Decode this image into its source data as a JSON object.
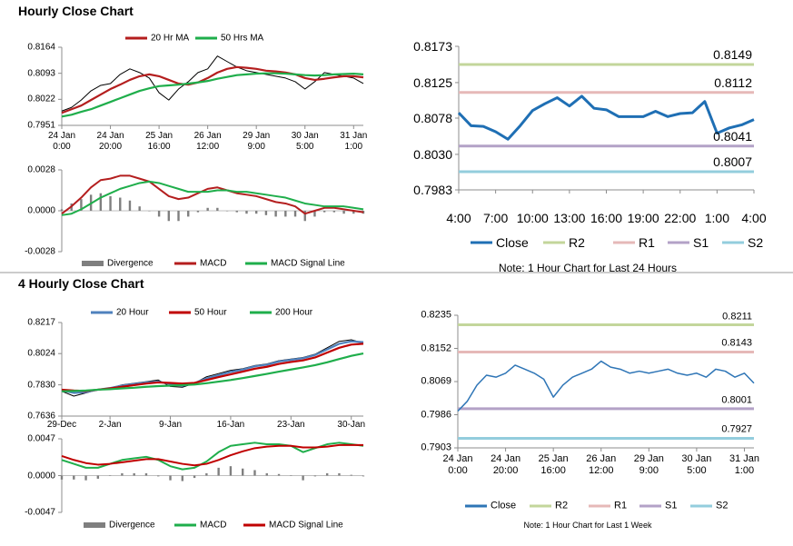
{
  "headings": [
    "Hourly Close Chart",
    "4 Hourly Close Chart"
  ],
  "chart_data": [
    {
      "type": "line",
      "categories": [
        "24 Jan\n0:00",
        null,
        null,
        null,
        null,
        "24 Jan\n20:00",
        null,
        null,
        null,
        null,
        "25 Jan\n16:00",
        null,
        null,
        null,
        null,
        "26 Jan\n12:00",
        null,
        null,
        null,
        null,
        "29 Jan\n9:00",
        null,
        null,
        null,
        null,
        "30 Jan\n5:00",
        null,
        null,
        null,
        null,
        "31 Jan\n1:00",
        null
      ],
      "series": [
        {
          "color": "#000000",
          "values": [
            0.799,
            0.8,
            0.802,
            0.8045,
            0.806,
            0.8065,
            0.809,
            0.8105,
            0.8095,
            0.808,
            0.804,
            0.802,
            0.805,
            0.807,
            0.8095,
            0.8105,
            0.814,
            0.8125,
            0.811,
            0.81,
            0.8095,
            0.809,
            0.8085,
            0.808,
            0.807,
            0.805,
            0.807,
            0.8095,
            0.809,
            0.8085,
            0.808,
            0.8065
          ]
        },
        {
          "name": "20 Hr MA",
          "color": "#b41e1e",
          "values": [
            0.7985,
            0.7995,
            0.8005,
            0.802,
            0.8035,
            0.805,
            0.8062,
            0.8075,
            0.8085,
            0.809,
            0.8085,
            0.8075,
            0.8065,
            0.8062,
            0.8068,
            0.808,
            0.8095,
            0.8105,
            0.811,
            0.8108,
            0.8105,
            0.81,
            0.8098,
            0.8095,
            0.809,
            0.808,
            0.8075,
            0.8078,
            0.8082,
            0.8085,
            0.8085,
            0.8082
          ]
        },
        {
          "name": "50 Hrs MA",
          "color": "#1fae4b",
          "values": [
            0.7975,
            0.798,
            0.7988,
            0.7995,
            0.8005,
            0.8015,
            0.8025,
            0.8035,
            0.8045,
            0.8052,
            0.8058,
            0.806,
            0.8062,
            0.8065,
            0.8068,
            0.8072,
            0.8078,
            0.8083,
            0.8088,
            0.809,
            0.8092,
            0.8093,
            0.8093,
            0.8092,
            0.809,
            0.8088,
            0.8087,
            0.8088,
            0.809,
            0.8091,
            0.8092,
            0.809
          ]
        }
      ],
      "ylim": [
        0.7951,
        0.8164
      ],
      "yticks": [
        0.7951,
        0.8022,
        0.8093,
        0.8164
      ]
    },
    {
      "type": "combo",
      "series": [
        {
          "name": "Divergence",
          "type": "bar",
          "color": "#7f7f7f",
          "values": [
            0.0001,
            0.0005,
            0.0008,
            0.0011,
            0.0012,
            0.001,
            0.0009,
            0.0007,
            0.0003,
            0,
            -0.0004,
            -0.0007,
            -0.0007,
            -0.0004,
            -0.0001,
            0.0002,
            0.0002,
            0,
            -0.0001,
            -0.0002,
            -0.0002,
            -0.0003,
            -0.0004,
            -0.0004,
            -0.0004,
            -0.0007,
            -0.0004,
            -0.0001,
            -0.0001,
            -0.0002,
            -0.0002,
            -0.0002
          ]
        },
        {
          "name": "MACD",
          "type": "line",
          "color": "#b41e1e",
          "values": [
            -0.0002,
            0.0003,
            0.0009,
            0.0016,
            0.0021,
            0.0022,
            0.0024,
            0.0024,
            0.0022,
            0.002,
            0.0015,
            0.001,
            0.0008,
            0.0009,
            0.0012,
            0.0015,
            0.0016,
            0.0014,
            0.0012,
            0.0011,
            0.001,
            0.0008,
            0.0006,
            0.0005,
            0.0003,
            -0.0002,
            0,
            0.0002,
            0.0002,
            0.0001,
            0,
            -0.0001
          ]
        },
        {
          "name": "MACD Signal Line",
          "type": "line",
          "color": "#1fae4b",
          "values": [
            -0.0003,
            -0.0002,
            0.0001,
            0.0005,
            0.0009,
            0.0012,
            0.0015,
            0.0017,
            0.0019,
            0.002,
            0.0019,
            0.0017,
            0.0015,
            0.0013,
            0.0013,
            0.0013,
            0.0014,
            0.0014,
            0.0013,
            0.0013,
            0.0012,
            0.0011,
            0.001,
            0.0009,
            0.0007,
            0.0005,
            0.0004,
            0.0003,
            0.0003,
            0.0003,
            0.0002,
            0.0001
          ]
        }
      ],
      "ylim": [
        -0.0028,
        0.0028
      ],
      "yticks": [
        -0.0028,
        {
          "value": 0,
          "label": "0.0000"
        },
        0.0028
      ]
    },
    {
      "type": "line",
      "categories": [
        "4:00",
        null,
        null,
        "7:00",
        null,
        null,
        "10:00",
        null,
        null,
        "13:00",
        null,
        null,
        "16:00",
        null,
        null,
        "19:00",
        null,
        null,
        "22:00",
        null,
        null,
        "1:00",
        null,
        null,
        "4:00"
      ],
      "series": [
        {
          "name": "Close",
          "color": "#1f6fb4",
          "values": [
            0.8085,
            0.8068,
            0.8067,
            0.806,
            0.805,
            0.8068,
            0.8088,
            0.8097,
            0.8105,
            0.8094,
            0.8107,
            0.8091,
            0.8089,
            0.808,
            0.808,
            0.808,
            0.8087,
            0.808,
            0.8084,
            0.8085,
            0.81,
            0.8058,
            0.8065,
            0.8069,
            0.8076
          ]
        }
      ],
      "levels": [
        {
          "name": "R2",
          "value": 0.8149,
          "color": "#c3d69b"
        },
        {
          "name": "R1",
          "value": 0.8112,
          "color": "#e6b9b8"
        },
        {
          "name": "S1",
          "value": 0.8041,
          "color": "#b3a2c7"
        },
        {
          "name": "S2",
          "value": 0.8007,
          "color": "#93cddd"
        }
      ],
      "ylim": [
        0.7983,
        0.8173
      ],
      "yticks": [
        0.7983,
        {
          "value": 0.803,
          "label": "0.8030"
        },
        0.8078,
        0.8125,
        0.8173
      ],
      "note": "Note: 1 Hour Chart for Last 24 Hours"
    },
    {
      "type": "line",
      "categories": [
        "29-Dec",
        null,
        null,
        null,
        "2-Jan",
        null,
        null,
        null,
        null,
        "9-Jan",
        null,
        null,
        null,
        null,
        "16-Jan",
        null,
        null,
        null,
        null,
        "23-Jan",
        null,
        null,
        null,
        null,
        "30-Jan",
        null
      ],
      "series": [
        {
          "color": "#000000",
          "values": [
            0.779,
            0.776,
            0.778,
            0.78,
            0.781,
            0.783,
            0.784,
            0.785,
            0.786,
            0.782,
            0.7815,
            0.784,
            0.788,
            0.79,
            0.792,
            0.793,
            0.795,
            0.796,
            0.798,
            0.799,
            0.8,
            0.802,
            0.806,
            0.81,
            0.811,
            0.809
          ]
        },
        {
          "name": "20 Hour",
          "color": "#4f81bd",
          "values": [
            0.7795,
            0.778,
            0.7785,
            0.78,
            0.781,
            0.7825,
            0.7835,
            0.7845,
            0.785,
            0.7835,
            0.7825,
            0.784,
            0.787,
            0.789,
            0.791,
            0.7925,
            0.7945,
            0.7955,
            0.7975,
            0.7985,
            0.7995,
            0.8015,
            0.805,
            0.8085,
            0.81,
            0.8095
          ]
        },
        {
          "name": "50 Hour",
          "color": "#c00000",
          "values": [
            0.78,
            0.7795,
            0.7792,
            0.78,
            0.7808,
            0.7818,
            0.7828,
            0.7838,
            0.7845,
            0.7842,
            0.7838,
            0.7842,
            0.786,
            0.7878,
            0.7895,
            0.7912,
            0.793,
            0.7942,
            0.796,
            0.7972,
            0.7982,
            0.8,
            0.803,
            0.806,
            0.808,
            0.8085
          ]
        },
        {
          "name": "200 Hour",
          "color": "#1fae4b",
          "values": [
            0.779,
            0.7792,
            0.7795,
            0.78,
            0.7803,
            0.7808,
            0.7812,
            0.7818,
            0.7822,
            0.7825,
            0.7828,
            0.7832,
            0.784,
            0.785,
            0.786,
            0.7872,
            0.7885,
            0.7898,
            0.7912,
            0.7925,
            0.7938,
            0.7952,
            0.797,
            0.799,
            0.801,
            0.8025
          ]
        }
      ],
      "ylim": [
        0.7636,
        0.8217
      ],
      "yticks": [
        0.7636,
        {
          "value": 0.783,
          "label": "0.7830"
        },
        0.8024,
        0.8217
      ]
    },
    {
      "type": "combo",
      "series": [
        {
          "name": "Divergence",
          "type": "bar",
          "color": "#7f7f7f",
          "values": [
            -0.0005,
            -0.0005,
            -0.0006,
            -0.0004,
            0,
            0.0003,
            0.0003,
            0.0003,
            -0.0001,
            -0.0006,
            -0.0007,
            -0.0003,
            0.0003,
            0.001,
            0.0012,
            0.0009,
            0.0007,
            0.0003,
            0.0002,
            0,
            -0.0006,
            -0.0001,
            0.0003,
            0.0003,
            0.0001,
            -0.0001
          ]
        },
        {
          "name": "MACD",
          "type": "line",
          "color": "#1fae4b",
          "values": [
            0.002,
            0.0015,
            0.001,
            0.001,
            0.0015,
            0.002,
            0.0022,
            0.0024,
            0.002,
            0.0012,
            0.0008,
            0.001,
            0.0018,
            0.003,
            0.0038,
            0.004,
            0.0042,
            0.004,
            0.004,
            0.0038,
            0.003,
            0.0035,
            0.004,
            0.0042,
            0.004,
            0.0038
          ]
        },
        {
          "name": "MACD Signal Line",
          "type": "line",
          "color": "#c00000",
          "values": [
            0.0025,
            0.002,
            0.0016,
            0.0014,
            0.0015,
            0.0017,
            0.0019,
            0.0021,
            0.0021,
            0.0018,
            0.0015,
            0.0013,
            0.0015,
            0.002,
            0.0026,
            0.0031,
            0.0035,
            0.0037,
            0.0038,
            0.0038,
            0.0036,
            0.0036,
            0.0037,
            0.0039,
            0.0039,
            0.0039
          ]
        }
      ],
      "ylim": [
        -0.0047,
        0.0047
      ],
      "yticks": [
        -0.0047,
        {
          "value": 0,
          "label": "0.0000"
        },
        0.0047
      ]
    },
    {
      "type": "line",
      "categories": [
        "24 Jan\n0:00",
        null,
        null,
        null,
        null,
        "24 Jan\n20:00",
        null,
        null,
        null,
        null,
        "25 Jan\n16:00",
        null,
        null,
        null,
        null,
        "26 Jan\n12:00",
        null,
        null,
        null,
        null,
        "29 Jan\n9:00",
        null,
        null,
        null,
        null,
        "30 Jan\n5:00",
        null,
        null,
        null,
        null,
        "31 Jan\n1:00",
        null
      ],
      "series": [
        {
          "name": "Close",
          "color": "#2e75b6",
          "values": [
            0.7995,
            0.802,
            0.806,
            0.8085,
            0.808,
            0.809,
            0.811,
            0.81,
            0.809,
            0.8075,
            0.803,
            0.806,
            0.808,
            0.809,
            0.81,
            0.812,
            0.8105,
            0.81,
            0.809,
            0.8095,
            0.809,
            0.8095,
            0.81,
            0.809,
            0.8085,
            0.809,
            0.808,
            0.81,
            0.8095,
            0.808,
            0.809,
            0.8065
          ]
        }
      ],
      "levels": [
        {
          "name": "R2",
          "value": 0.8211,
          "color": "#c3d69b"
        },
        {
          "name": "R1",
          "value": 0.8143,
          "color": "#e6b9b8"
        },
        {
          "name": "S1",
          "value": 0.8001,
          "color": "#b3a2c7"
        },
        {
          "name": "S2",
          "value": 0.7927,
          "color": "#93cddd"
        }
      ],
      "ylim": [
        0.7903,
        0.8235
      ],
      "yticks": [
        0.7903,
        0.7986,
        0.8069,
        0.8152,
        0.8235
      ],
      "note": "Note: 1 Hour Chart for Last 1 Week"
    }
  ]
}
